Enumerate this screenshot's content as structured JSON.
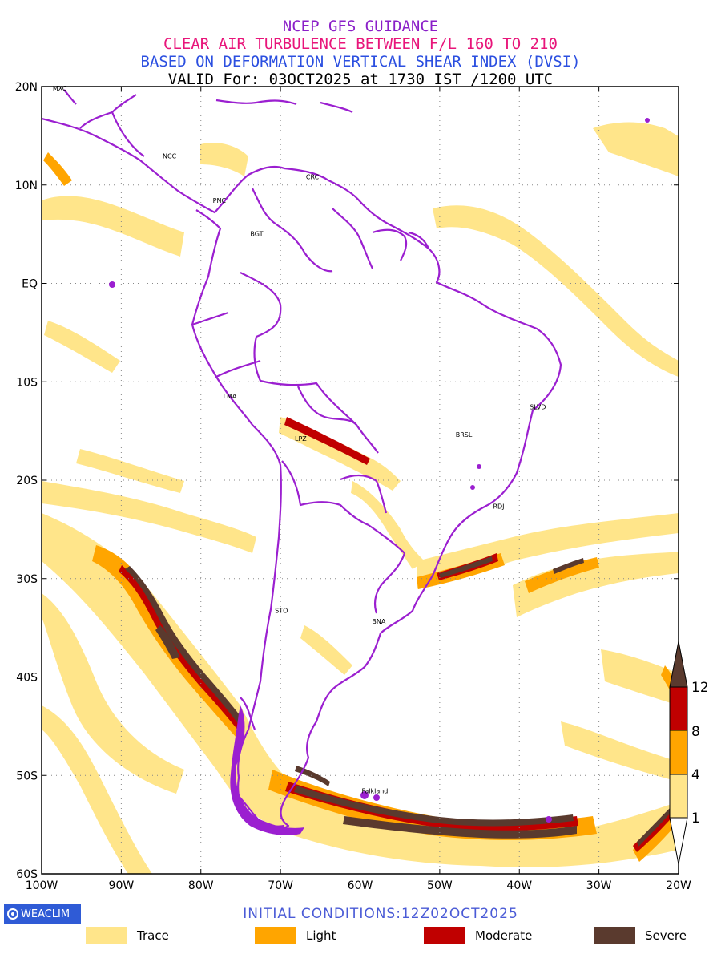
{
  "titles": {
    "line1": "NCEP GFS GUIDANCE",
    "line2": "CLEAR AIR TURBULENCE BETWEEN F/L 160 TO 210",
    "line3": "BASED ON DEFORMATION VERTICAL SHEAR INDEX (DVSI)",
    "line4": "VALID For: 03OCT2025 at 1730 IST /1200 UTC"
  },
  "colors": {
    "line1": "#8a1fc8",
    "line2": "#e8157a",
    "line3": "#2b4fe0",
    "line4": "#000000",
    "trace": "#ffe58a",
    "light": "#ffa500",
    "moderate": "#c00000",
    "severe": "#5a3a2e",
    "border": "#9b1fd0",
    "brand_bg": "#2f5bd6",
    "init_text": "#4a5bd6"
  },
  "map": {
    "lat_labels": [
      "20N",
      "10N",
      "EQ",
      "10S",
      "20S",
      "30S",
      "40S",
      "50S",
      "60S"
    ],
    "lon_labels": [
      "100W",
      "90W",
      "80W",
      "70W",
      "60W",
      "50W",
      "40W",
      "30W",
      "20W"
    ],
    "cities": [
      {
        "name": "MXC",
        "lon": -98.6,
        "lat": 19.6
      },
      {
        "name": "NCC",
        "lon": -84.8,
        "lat": 12.7
      },
      {
        "name": "PNC",
        "lon": -78.5,
        "lat": 8.2
      },
      {
        "name": "CRC",
        "lon": -66.8,
        "lat": 10.6
      },
      {
        "name": "BGT",
        "lon": -73.8,
        "lat": 4.8
      },
      {
        "name": "LMA",
        "lon": -77.2,
        "lat": -11.7
      },
      {
        "name": "LPZ",
        "lon": -68.2,
        "lat": -16.0
      },
      {
        "name": "BRSL",
        "lon": -48.0,
        "lat": -15.6
      },
      {
        "name": "SLVD",
        "lon": -38.7,
        "lat": -12.8
      },
      {
        "name": "RDJ",
        "lon": -43.3,
        "lat": -22.9
      },
      {
        "name": "STO",
        "lon": -70.7,
        "lat": -33.5
      },
      {
        "name": "BNA",
        "lon": -58.5,
        "lat": -34.6
      },
      {
        "name": "Falkland",
        "lon": -59.8,
        "lat": -51.8
      }
    ]
  },
  "colorbar": {
    "labels": [
      "1",
      "4",
      "8",
      "12"
    ]
  },
  "footer": {
    "brand": "WEACLIM",
    "initial": "INITIAL CONDITIONS:12Z02OCT2025"
  },
  "legend": [
    {
      "label": "Trace",
      "color": "#ffe58a"
    },
    {
      "label": "Light",
      "color": "#ffa500"
    },
    {
      "label": "Moderate",
      "color": "#c00000"
    },
    {
      "label": "Severe",
      "color": "#5a3a2e"
    }
  ]
}
